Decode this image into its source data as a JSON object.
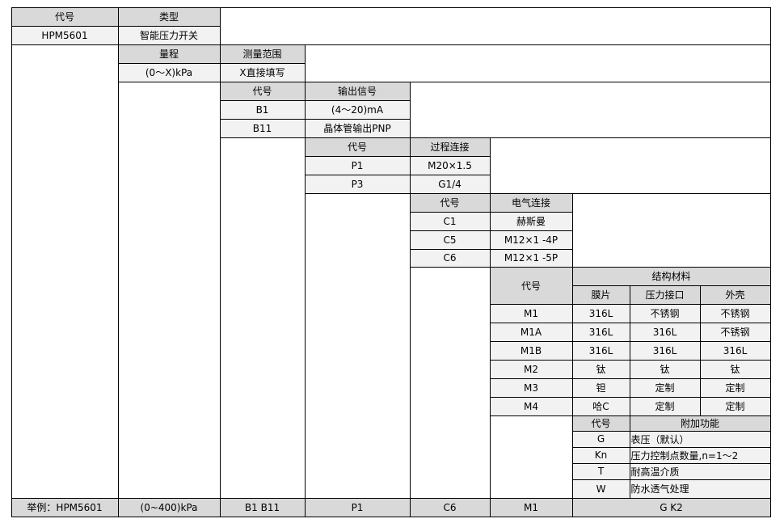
{
  "model": {
    "code_header": "代号",
    "type_header": "类型",
    "code": "HPM5601",
    "type": "智能压力开关"
  },
  "range": {
    "header": "量程",
    "measure_header": "测量范围",
    "value": "(0～X)kPa",
    "note": "X直接填写"
  },
  "output": {
    "code_header": "代号",
    "header": "输出信号",
    "rows": [
      {
        "code": "B1",
        "value": "(4～20)mA"
      },
      {
        "code": "B11",
        "value": "晶体管输出PNP"
      }
    ]
  },
  "process": {
    "code_header": "代号",
    "header": "过程连接",
    "rows": [
      {
        "code": "P1",
        "value": "M20×1.5"
      },
      {
        "code": "P3",
        "value": "G1/4"
      }
    ]
  },
  "electrical": {
    "code_header": "代号",
    "header": "电气连接",
    "rows": [
      {
        "code": "C1",
        "value": "赫斯曼"
      },
      {
        "code": "C5",
        "value": "M12×1 -4P"
      },
      {
        "code": "C6",
        "value": "M12×1 -5P"
      }
    ]
  },
  "material": {
    "code_header": "代号",
    "header": "结构材料",
    "cols": [
      "膜片",
      "压力接口",
      "外壳"
    ],
    "rows": [
      {
        "code": "M1",
        "v": [
          "316L",
          "不锈钢",
          "不锈钢"
        ]
      },
      {
        "code": "M1A",
        "v": [
          "316L",
          "316L",
          "不锈钢"
        ]
      },
      {
        "code": "M1B",
        "v": [
          "316L",
          "316L",
          "316L"
        ]
      },
      {
        "code": "M2",
        "v": [
          "钛",
          "钛",
          "钛"
        ]
      },
      {
        "code": "M3",
        "v": [
          "钽",
          "定制",
          "定制"
        ]
      },
      {
        "code": "M4",
        "v": [
          "哈C",
          "定制",
          "定制"
        ]
      }
    ]
  },
  "function": {
    "code_header": "代号",
    "header": "附加功能",
    "rows": [
      {
        "code": "G",
        "value": "表压（默认）"
      },
      {
        "code": "Kn",
        "value": "压力控制点数量,n=1～2"
      },
      {
        "code": "T",
        "value": "耐高温介质"
      },
      {
        "code": "W",
        "value": "防水透气处理"
      }
    ]
  },
  "example": [
    "举例：HPM5601",
    "(0~400)kPa",
    "B1 B11",
    "P1",
    "C6",
    "M1",
    "G K2"
  ]
}
